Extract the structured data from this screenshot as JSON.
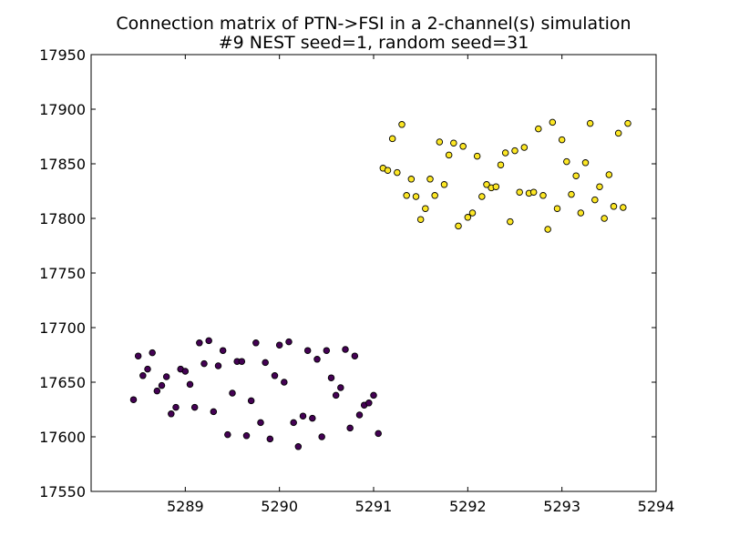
{
  "chart_data": {
    "type": "scatter",
    "title": "Connection matrix of PTN->FSI in a 2-channel(s) simulation",
    "subtitle": "#9 NEST seed=1, random seed=31",
    "xlabel": "",
    "ylabel": "",
    "xlim": [
      5288,
      5294
    ],
    "ylim": [
      17550,
      17950
    ],
    "xticks": [
      5289,
      5290,
      5291,
      5292,
      5293,
      5294
    ],
    "xtick_labels": [
      "5289",
      "5290",
      "5291",
      "5292",
      "5293",
      "5294"
    ],
    "yticks": [
      17550,
      17600,
      17650,
      17700,
      17750,
      17800,
      17850,
      17900,
      17950
    ],
    "ytick_labels": [
      "17550",
      "17600",
      "17650",
      "17700",
      "17750",
      "17800",
      "17850",
      "17900",
      "17950"
    ],
    "grid": false,
    "legend": "none",
    "series": [
      {
        "color": "#440154",
        "points": [
          [
            5288.45,
            17634
          ],
          [
            5288.5,
            17674
          ],
          [
            5288.55,
            17656
          ],
          [
            5288.6,
            17662
          ],
          [
            5288.65,
            17677
          ],
          [
            5288.7,
            17642
          ],
          [
            5288.75,
            17647
          ],
          [
            5288.8,
            17655
          ],
          [
            5288.85,
            17621
          ],
          [
            5288.9,
            17627
          ],
          [
            5288.95,
            17662
          ],
          [
            5289.0,
            17660
          ],
          [
            5289.05,
            17648
          ],
          [
            5289.1,
            17627
          ],
          [
            5289.15,
            17686
          ],
          [
            5289.2,
            17667
          ],
          [
            5289.25,
            17688
          ],
          [
            5289.3,
            17623
          ],
          [
            5289.35,
            17665
          ],
          [
            5289.4,
            17679
          ],
          [
            5289.45,
            17602
          ],
          [
            5289.5,
            17640
          ],
          [
            5289.55,
            17669
          ],
          [
            5289.6,
            17669
          ],
          [
            5289.65,
            17601
          ],
          [
            5289.7,
            17633
          ],
          [
            5289.75,
            17686
          ],
          [
            5289.8,
            17613
          ],
          [
            5289.85,
            17668
          ],
          [
            5289.9,
            17598
          ],
          [
            5289.95,
            17656
          ],
          [
            5290.0,
            17684
          ],
          [
            5290.05,
            17650
          ],
          [
            5290.1,
            17687
          ],
          [
            5290.15,
            17613
          ],
          [
            5290.2,
            17591
          ],
          [
            5290.25,
            17619
          ],
          [
            5290.3,
            17679
          ],
          [
            5290.35,
            17617
          ],
          [
            5290.4,
            17671
          ],
          [
            5290.45,
            17600
          ],
          [
            5290.5,
            17679
          ],
          [
            5290.55,
            17654
          ],
          [
            5290.6,
            17638
          ],
          [
            5290.65,
            17645
          ],
          [
            5290.7,
            17680
          ],
          [
            5290.75,
            17608
          ],
          [
            5290.8,
            17674
          ],
          [
            5290.85,
            17620
          ],
          [
            5290.9,
            17629
          ],
          [
            5290.95,
            17631
          ],
          [
            5291.0,
            17638
          ],
          [
            5291.05,
            17603
          ]
        ]
      },
      {
        "color": "#fde725",
        "points": [
          [
            5291.1,
            17846
          ],
          [
            5291.15,
            17844
          ],
          [
            5291.2,
            17873
          ],
          [
            5291.25,
            17842
          ],
          [
            5291.3,
            17886
          ],
          [
            5291.35,
            17821
          ],
          [
            5291.4,
            17836
          ],
          [
            5291.45,
            17820
          ],
          [
            5291.5,
            17799
          ],
          [
            5291.55,
            17809
          ],
          [
            5291.6,
            17836
          ],
          [
            5291.65,
            17821
          ],
          [
            5291.7,
            17870
          ],
          [
            5291.75,
            17831
          ],
          [
            5291.8,
            17858
          ],
          [
            5291.85,
            17869
          ],
          [
            5291.9,
            17793
          ],
          [
            5291.95,
            17866
          ],
          [
            5292.0,
            17801
          ],
          [
            5292.05,
            17805
          ],
          [
            5292.1,
            17857
          ],
          [
            5292.15,
            17820
          ],
          [
            5292.2,
            17831
          ],
          [
            5292.25,
            17828
          ],
          [
            5292.3,
            17829
          ],
          [
            5292.35,
            17849
          ],
          [
            5292.4,
            17860
          ],
          [
            5292.45,
            17797
          ],
          [
            5292.5,
            17862
          ],
          [
            5292.55,
            17824
          ],
          [
            5292.6,
            17865
          ],
          [
            5292.65,
            17823
          ],
          [
            5292.7,
            17824
          ],
          [
            5292.75,
            17882
          ],
          [
            5292.8,
            17821
          ],
          [
            5292.85,
            17790
          ],
          [
            5292.9,
            17888
          ],
          [
            5292.95,
            17809
          ],
          [
            5293.0,
            17872
          ],
          [
            5293.05,
            17852
          ],
          [
            5293.1,
            17822
          ],
          [
            5293.15,
            17839
          ],
          [
            5293.2,
            17805
          ],
          [
            5293.25,
            17851
          ],
          [
            5293.3,
            17887
          ],
          [
            5293.35,
            17817
          ],
          [
            5293.4,
            17829
          ],
          [
            5293.45,
            17800
          ],
          [
            5293.5,
            17840
          ],
          [
            5293.55,
            17811
          ],
          [
            5293.6,
            17878
          ],
          [
            5293.65,
            17810
          ],
          [
            5293.7,
            17887
          ]
        ]
      }
    ]
  }
}
